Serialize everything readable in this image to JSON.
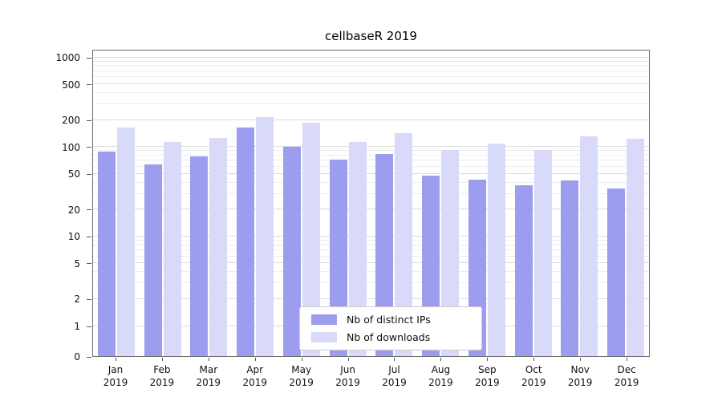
{
  "title": "cellbaseR 2019",
  "chart_data": {
    "type": "bar",
    "title": "cellbaseR 2019",
    "yscale": "log-with-zero-baseline",
    "ylim": [
      0,
      1200
    ],
    "yticks": [
      0,
      1,
      2,
      5,
      10,
      20,
      50,
      100,
      200,
      500,
      1000
    ],
    "grid": true,
    "legend_position": "lower center",
    "categories": [
      {
        "month": "Jan",
        "year": "2019"
      },
      {
        "month": "Feb",
        "year": "2019"
      },
      {
        "month": "Mar",
        "year": "2019"
      },
      {
        "month": "Apr",
        "year": "2019"
      },
      {
        "month": "May",
        "year": "2019"
      },
      {
        "month": "Jun",
        "year": "2019"
      },
      {
        "month": "Jul",
        "year": "2019"
      },
      {
        "month": "Aug",
        "year": "2019"
      },
      {
        "month": "Sep",
        "year": "2019"
      },
      {
        "month": "Oct",
        "year": "2019"
      },
      {
        "month": "Nov",
        "year": "2019"
      },
      {
        "month": "Dec",
        "year": "2019"
      }
    ],
    "series": [
      {
        "name": "Nb of distinct IPs",
        "color": "#9d9df0",
        "values": [
          88,
          63,
          78,
          163,
          100,
          71,
          82,
          47,
          43,
          37,
          42,
          34
        ]
      },
      {
        "name": "Nb of downloads",
        "color": "#d9d9fa",
        "values": [
          162,
          113,
          124,
          215,
          186,
          112,
          142,
          91,
          108,
          92,
          131,
          121
        ]
      }
    ]
  }
}
